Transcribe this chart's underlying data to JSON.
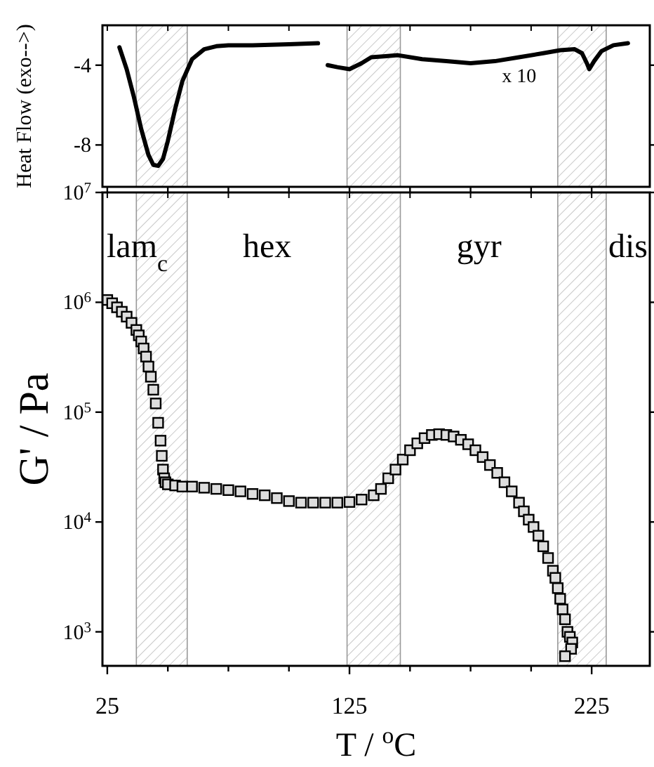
{
  "chart_data": [
    {
      "type": "line",
      "ylabel": "Heat Flow (exo-->)",
      "xlim": [
        23,
        249
      ],
      "ylim": [
        -10.1,
        -2
      ],
      "xticks": [
        {
          "value": 25,
          "label": null
        },
        {
          "value": 50,
          "label": null
        },
        {
          "value": 75,
          "label": null
        },
        {
          "value": 100,
          "label": null
        },
        {
          "value": 125,
          "label": null
        },
        {
          "value": 150,
          "label": null
        },
        {
          "value": 175,
          "label": null
        },
        {
          "value": 200,
          "label": null
        },
        {
          "value": 225,
          "label": null
        }
      ],
      "yticks": [
        -4,
        -8
      ],
      "tick_labels": "y",
      "line_style": "solid",
      "marker": "none",
      "series": [
        {
          "color": "#000000",
          "x": [
            30,
            33,
            36,
            39,
            42,
            44,
            46,
            48,
            50,
            53,
            56,
            60,
            65,
            70,
            75,
            85,
            100,
            112
          ],
          "values": [
            -3.1,
            -4.2,
            -5.6,
            -7.2,
            -8.5,
            -9.0,
            -9.05,
            -8.7,
            -7.8,
            -6.2,
            -4.8,
            -3.7,
            -3.2,
            -3.05,
            -3.0,
            -3.0,
            -2.95,
            -2.9
          ]
        },
        {
          "color": "#000000",
          "x": [
            116,
            120,
            125,
            130,
            134,
            140,
            145,
            155,
            165,
            175,
            185,
            195,
            205,
            212,
            218,
            221,
            223,
            224,
            226,
            229,
            234,
            240
          ],
          "values": [
            -4.0,
            -4.1,
            -4.2,
            -3.9,
            -3.6,
            -3.55,
            -3.5,
            -3.7,
            -3.8,
            -3.9,
            -3.8,
            -3.6,
            -3.4,
            -3.25,
            -3.2,
            -3.4,
            -3.9,
            -4.2,
            -3.8,
            -3.3,
            -3.0,
            -2.9
          ]
        }
      ],
      "bands": [
        {
          "axis": "x",
          "from": 37,
          "to": 58,
          "color": "#999999"
        },
        {
          "axis": "x",
          "from": 124,
          "to": 146,
          "color": "#999999"
        },
        {
          "axis": "x",
          "from": 211,
          "to": 231,
          "color": "#999999"
        }
      ],
      "annotations": [
        "x 10"
      ]
    },
    {
      "type": "scatter",
      "xlabel": "T / $^{o}$C",
      "ylabel": "G' / Pa",
      "log": "y",
      "xlim": [
        23,
        249
      ],
      "ylim": [
        490,
        10000000
      ],
      "xticks": [
        25,
        {
          "value": 50,
          "label": null
        },
        {
          "value": 75,
          "label": null
        },
        {
          "value": 100,
          "label": null
        },
        125,
        {
          "value": 150,
          "label": null
        },
        {
          "value": 175,
          "label": null
        },
        {
          "value": 200,
          "label": null
        },
        225
      ],
      "yticks": [
        {
          "value": 1000,
          "label": "10$^{3}$"
        },
        {
          "value": 10000,
          "label": "10$^{4}$"
        },
        {
          "value": 100000,
          "label": "10$^{5}$"
        },
        {
          "value": 1000000,
          "label": "10$^{6}$"
        },
        {
          "value": 10000000,
          "label": "10$^{7}$"
        }
      ],
      "marker": "square",
      "series": [
        {
          "color": "#000000",
          "x": [
            25,
            27,
            29,
            31,
            33,
            35,
            37,
            38,
            39,
            40,
            41,
            42,
            43,
            44,
            45,
            46,
            47,
            47.5,
            48,
            48.5,
            49,
            50,
            53,
            56,
            60,
            65,
            70,
            75,
            80,
            85,
            90,
            95,
            100,
            105,
            110,
            115,
            120,
            125,
            130,
            135,
            138,
            141,
            144,
            147,
            150,
            153,
            156,
            159,
            162,
            165,
            168,
            171,
            174,
            177,
            180,
            183,
            186,
            189,
            192,
            195,
            197,
            199,
            201,
            203,
            205,
            207,
            209,
            210,
            211,
            212,
            213,
            214,
            215,
            216,
            217,
            216.5,
            214
          ],
          "values": [
            1050000,
            980000,
            900000,
            820000,
            740000,
            650000,
            560000,
            500000,
            440000,
            380000,
            320000,
            260000,
            210000,
            160000,
            120000,
            80000,
            55000,
            40000,
            30000,
            25000,
            23000,
            22000,
            21500,
            21000,
            21000,
            20500,
            20000,
            19500,
            19000,
            18000,
            17500,
            16500,
            15500,
            15000,
            15000,
            15000,
            15000,
            15200,
            16000,
            17500,
            20000,
            25000,
            30000,
            37000,
            45000,
            52000,
            58000,
            62000,
            63000,
            62000,
            60000,
            56000,
            51000,
            45000,
            39000,
            33000,
            28000,
            23000,
            19000,
            15000,
            12500,
            10500,
            9000,
            7500,
            6000,
            4700,
            3600,
            3100,
            2500,
            2000,
            1600,
            1300,
            1000,
            900,
            800,
            700,
            600
          ]
        }
      ],
      "bands": [
        {
          "axis": "x",
          "from": 37,
          "to": 58,
          "color": "#999999"
        },
        {
          "axis": "x",
          "from": 124,
          "to": 146,
          "color": "#999999"
        },
        {
          "axis": "x",
          "from": 211,
          "to": 231,
          "color": "#999999"
        }
      ],
      "annotations": [
        "lam$_{c}$",
        "hex",
        "gyr",
        "dis"
      ]
    }
  ]
}
